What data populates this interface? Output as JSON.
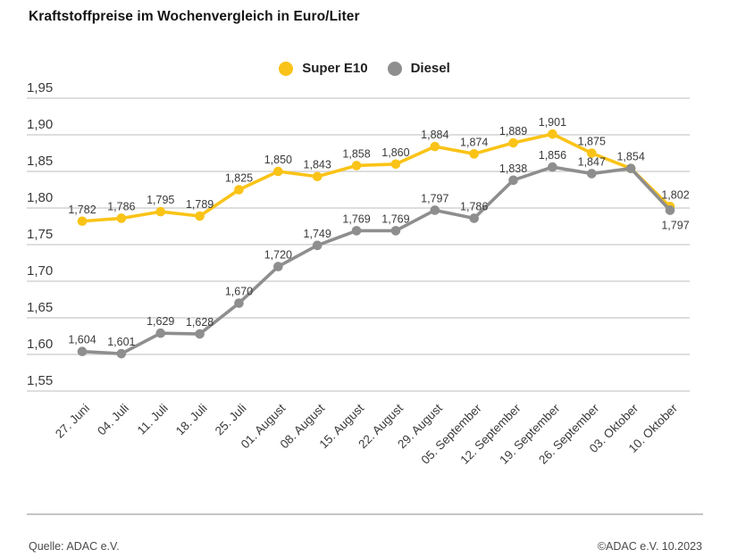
{
  "title": "Kraftstoffpreise im Wochenvergleich in Euro/Liter",
  "legend": {
    "items": [
      {
        "label": "Super E10",
        "color": "#FAC317"
      },
      {
        "label": "Diesel",
        "color": "#8E8E8E"
      }
    ]
  },
  "footer": {
    "source": "Quelle: ADAC e.V.",
    "copyright": "©ADAC e.V. 10.2023"
  },
  "colors": {
    "super_e10": "#FAC317",
    "diesel": "#8E8E8E",
    "gridline": "#c9c9c9",
    "axis_text": "#3a3a3a",
    "value_label_text": "#3a3a3a"
  },
  "chart_data": {
    "type": "line",
    "title": "Kraftstoffpreise im Wochenvergleich in Euro/Liter",
    "xlabel": "",
    "ylabel": "Euro/Liter",
    "ylim": [
      1.55,
      1.95
    ],
    "ytick_step": 0.05,
    "yticks": [
      "1,95",
      "1,90",
      "1,85",
      "1,80",
      "1,75",
      "1,70",
      "1,65",
      "1,60",
      "1,55"
    ],
    "ytick_values": [
      1.95,
      1.9,
      1.85,
      1.8,
      1.75,
      1.7,
      1.65,
      1.6,
      1.55
    ],
    "grid": true,
    "legend_position": "top-center",
    "categories": [
      "27. Juni",
      "04. Juli",
      "11. Juli",
      "18. Juli",
      "25. Juli",
      "01. August",
      "08. August",
      "15. August",
      "22. August",
      "29. August",
      "05. September",
      "12. September",
      "19. September",
      "26. September",
      "03. Oktober",
      "10. Oktober"
    ],
    "series": [
      {
        "name": "Super E10",
        "color": "#FAC317",
        "values": [
          1.782,
          1.786,
          1.795,
          1.789,
          1.825,
          1.85,
          1.843,
          1.858,
          1.86,
          1.884,
          1.874,
          1.889,
          1.901,
          1.875,
          1.854,
          1.802
        ],
        "labels": [
          "1,782",
          "1,786",
          "1,795",
          "1,789",
          "1,825",
          "1,850",
          "1,843",
          "1,858",
          "1,860",
          "1,884",
          "1,874",
          "1,889",
          "1,901",
          "1,875",
          null,
          "1,802"
        ]
      },
      {
        "name": "Diesel",
        "color": "#8E8E8E",
        "values": [
          1.604,
          1.601,
          1.629,
          1.628,
          1.67,
          1.72,
          1.749,
          1.769,
          1.769,
          1.797,
          1.786,
          1.838,
          1.856,
          1.847,
          1.854,
          1.797
        ],
        "labels": [
          "1,604",
          "1,601",
          "1,629",
          "1,628",
          "1,670",
          "1,720",
          "1,749",
          "1,769",
          "1,769",
          "1,797",
          "1,786",
          "1,838",
          "1,856",
          "1,847",
          "1,854",
          "1,797"
        ],
        "last_label_below": true
      }
    ]
  }
}
